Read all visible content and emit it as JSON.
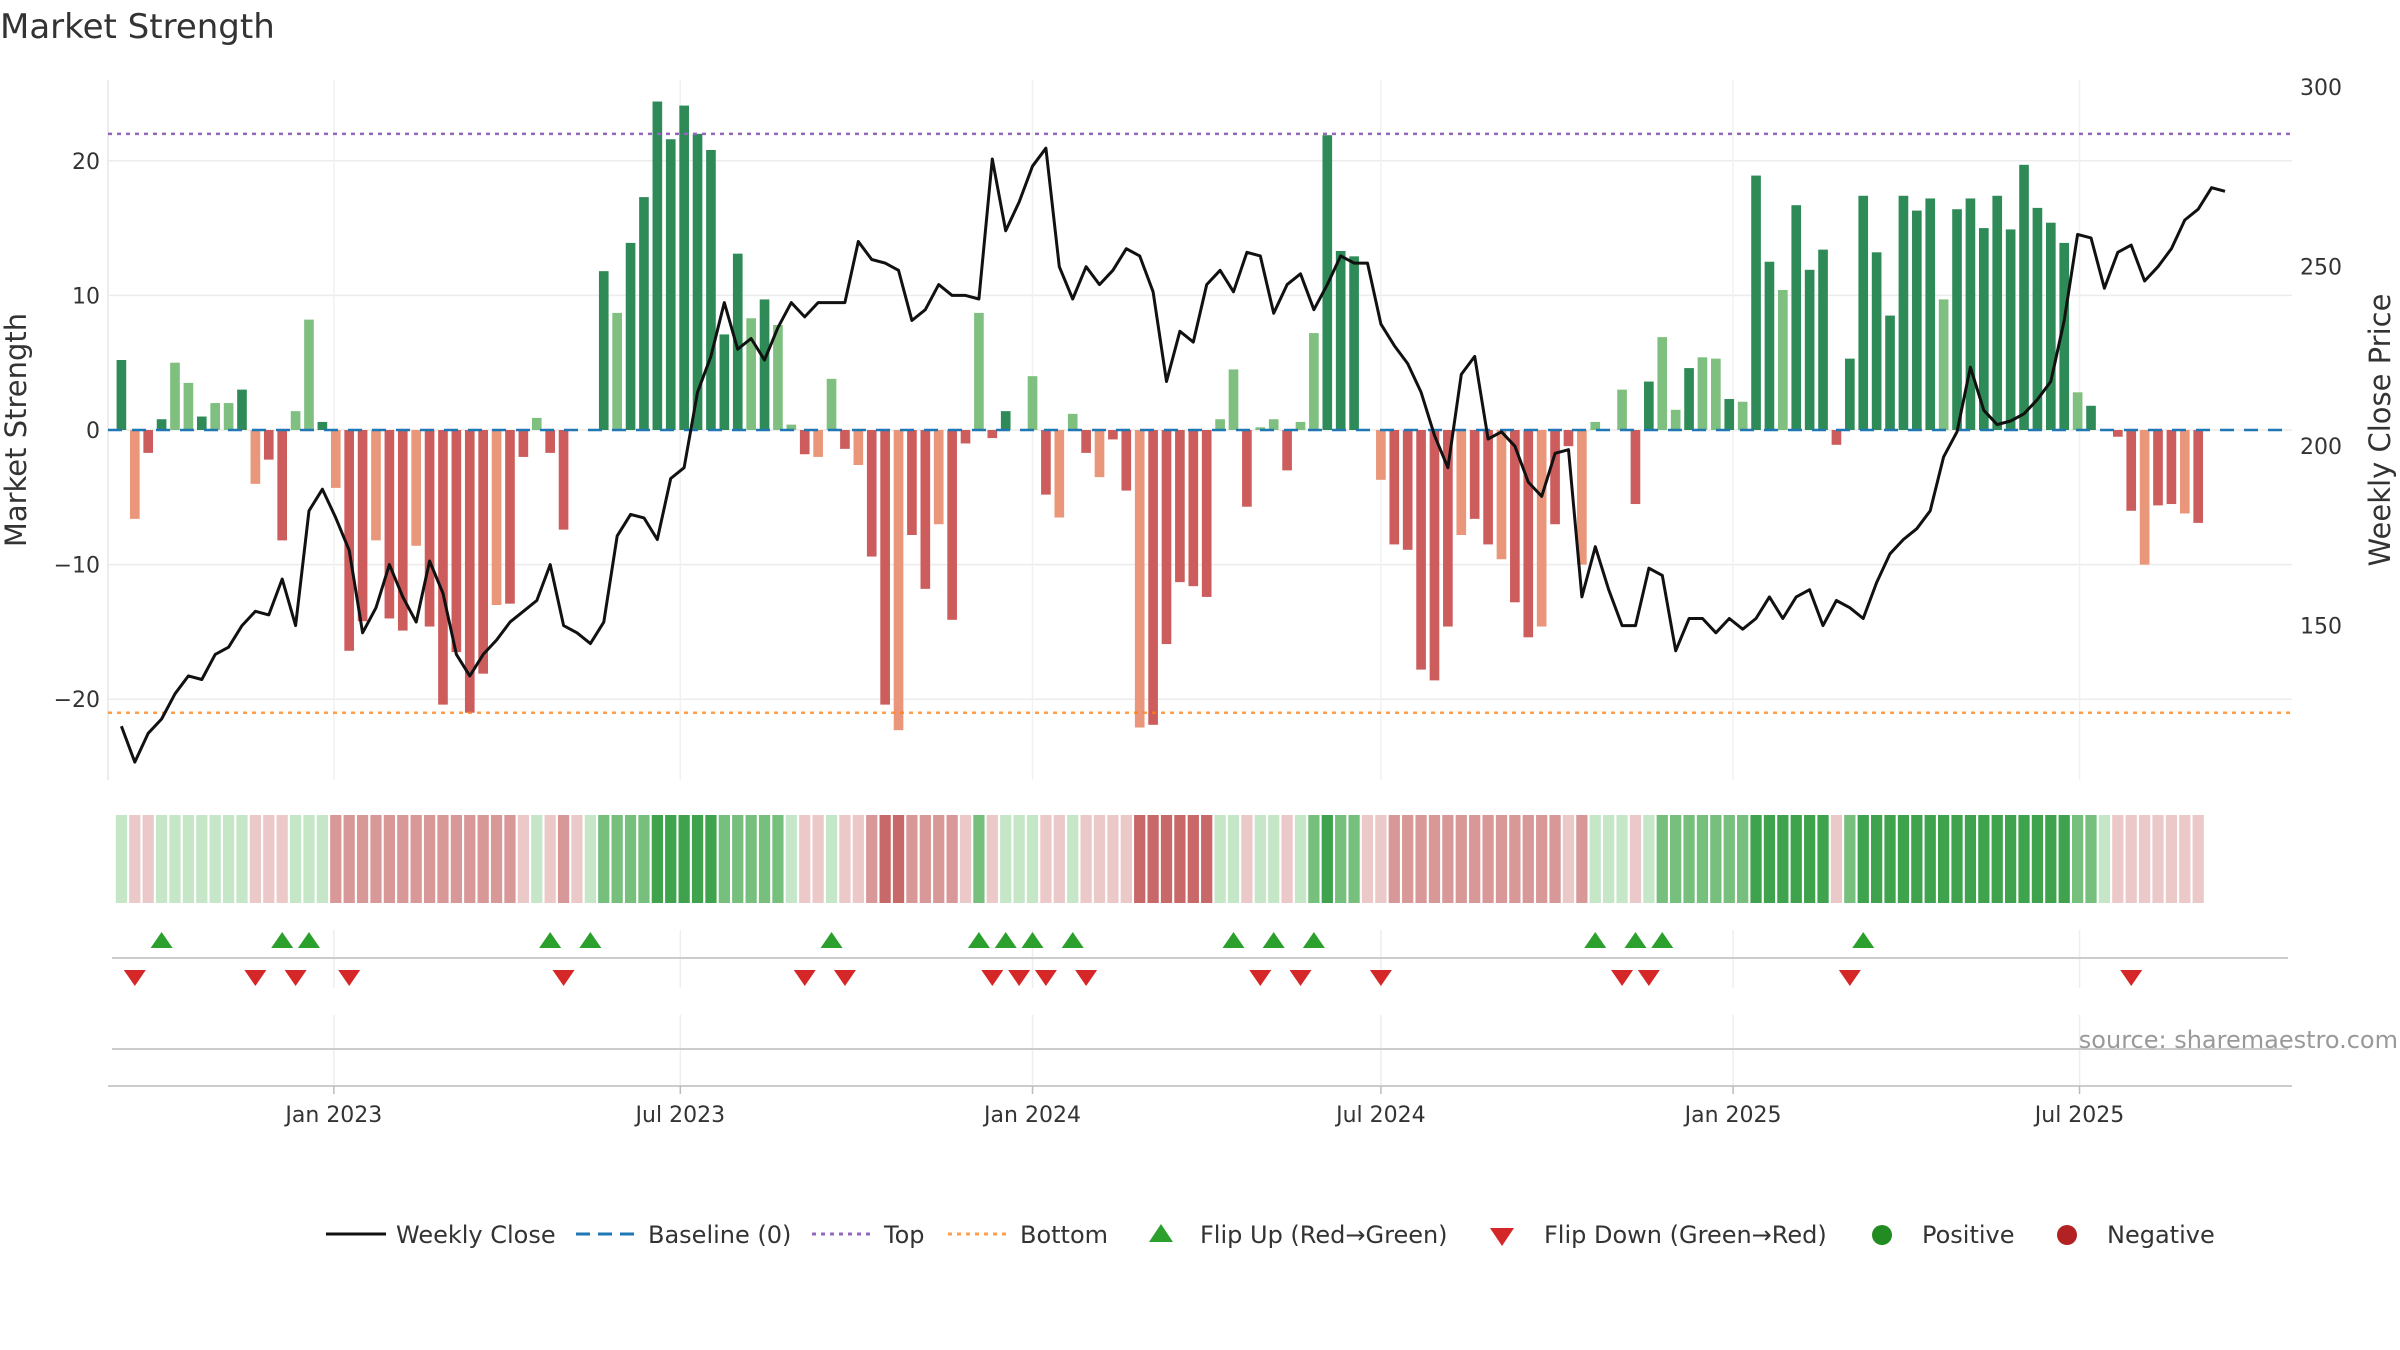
{
  "chart_data": {
    "type": "bar",
    "title": "Market Strength",
    "ylabel": "Market Strength",
    "y2label": "Weekly Close Price",
    "ylim": [
      -26,
      26
    ],
    "y_ticks": [
      -20,
      -10,
      0,
      10,
      20
    ],
    "y_tick_labels": [
      "−20",
      "−10",
      "0",
      "10",
      "20"
    ],
    "y2lim": [
      107,
      302
    ],
    "y2_ticks": [
      150,
      200,
      250,
      300
    ],
    "y2_tick_labels": [
      "150",
      "200",
      "250",
      "300"
    ],
    "top_line": 22,
    "bottom_line": -21,
    "x_start": "2022-09-05",
    "x_end": "2025-10-20",
    "x_ticks": [
      {
        "date": "2023-01-01",
        "label": "Jan 2023"
      },
      {
        "date": "2023-07-01",
        "label": "Jul 2023"
      },
      {
        "date": "2024-01-01",
        "label": "Jan 2024"
      },
      {
        "date": "2024-07-01",
        "label": "Jul 2024"
      },
      {
        "date": "2025-01-01",
        "label": "Jan 2025"
      },
      {
        "date": "2025-07-01",
        "label": "Jul 2025"
      }
    ],
    "start_date": "2022-09-12",
    "week_days": 7,
    "strength": [
      5.2,
      -6.6,
      -1.7,
      0.8,
      5.0,
      3.5,
      1.0,
      2.0,
      2.0,
      3.0,
      -4.0,
      -2.2,
      -8.2,
      1.4,
      8.2,
      0.6,
      -4.3,
      -16.4,
      -14.2,
      -8.2,
      -14.0,
      -14.9,
      -8.6,
      -14.6,
      -20.4,
      -16.5,
      -21.0,
      -18.1,
      -13.0,
      -12.9,
      -2.0,
      0.9,
      -1.7,
      -7.4,
      0,
      0,
      11.8,
      8.7,
      13.9,
      17.3,
      24.4,
      21.6,
      24.1,
      22.0,
      20.8,
      7.1,
      13.1,
      8.3,
      9.7,
      7.8,
      0.4,
      -1.8,
      -2.0,
      3.8,
      -1.4,
      -2.6,
      -9.4,
      -20.4,
      -22.3,
      -7.8,
      -11.8,
      -7.0,
      -14.1,
      -1.0,
      8.7,
      -0.6,
      1.4,
      0,
      4.0,
      -4.8,
      -6.5,
      1.2,
      -1.7,
      -3.5,
      -0.7,
      -4.5,
      -22.1,
      -21.9,
      -15.9,
      -11.3,
      -11.6,
      -12.4,
      0.8,
      4.5,
      -5.7,
      0.2,
      0.8,
      -3.0,
      0.6,
      7.2,
      21.9,
      13.3,
      12.9,
      0,
      -3.7,
      -8.5,
      -8.9,
      -17.8,
      -18.6,
      -14.6,
      -7.8,
      -6.6,
      -8.5,
      -9.6,
      -12.8,
      -15.4,
      -14.6,
      -7.0,
      -1.2,
      -10.0,
      0.6,
      0,
      3.0,
      -5.5,
      3.6,
      6.9,
      1.5,
      4.6,
      5.4,
      5.3,
      2.3,
      2.1,
      18.9,
      12.5,
      10.4,
      16.7,
      11.9,
      13.4,
      -1.1,
      5.3,
      17.4,
      13.2,
      8.5,
      17.4,
      16.3,
      17.2,
      9.7,
      16.4,
      17.2,
      15.0,
      17.4,
      14.9,
      19.7,
      16.5,
      15.4,
      13.9,
      2.8,
      1.8,
      0,
      -0.5,
      -6.0,
      -10.0,
      -5.6,
      -5.5,
      -6.2,
      -6.9
    ],
    "weekly_close": [
      122,
      112,
      120,
      124,
      131,
      136,
      135,
      142,
      144,
      150,
      154,
      153,
      163,
      150,
      182,
      188,
      180,
      171,
      148,
      155,
      167,
      158,
      151,
      168,
      159,
      142,
      136,
      142,
      146,
      151,
      154,
      157,
      167,
      150,
      148,
      145,
      151,
      175,
      181,
      180,
      174,
      191,
      194,
      215,
      225,
      240,
      227,
      230,
      224,
      233,
      240,
      236,
      240,
      240,
      240,
      257,
      252,
      251,
      249,
      235,
      238,
      245,
      242,
      242,
      241,
      280,
      260,
      268,
      278,
      283,
      250,
      241,
      250,
      245,
      249,
      255,
      253,
      243,
      218,
      232,
      229,
      245,
      249,
      243,
      254,
      253,
      237,
      245,
      248,
      238,
      245,
      253,
      251,
      251,
      234,
      228,
      223,
      215,
      203,
      194,
      220,
      225,
      202,
      204,
      200,
      190,
      186,
      198,
      199,
      158,
      172,
      160,
      150,
      150,
      166,
      164,
      143,
      152,
      152,
      148,
      152,
      149,
      152,
      158,
      152,
      158,
      160,
      150,
      157,
      155,
      152,
      162,
      170,
      174,
      177,
      182,
      197,
      204,
      222,
      210,
      206,
      207,
      209,
      213,
      218,
      235,
      259,
      258,
      244,
      254,
      256,
      246,
      250,
      255,
      263,
      266,
      272,
      271
    ],
    "colorbar": [
      "lg",
      "lr",
      "lr",
      "lg",
      "lg",
      "lg",
      "lg",
      "lg",
      "lg",
      "lg",
      "lr",
      "lr",
      "lr",
      "lg",
      "lg",
      "lg",
      "mr",
      "mr",
      "mr",
      "mr",
      "mr",
      "mr",
      "mr",
      "mr",
      "mr",
      "mr",
      "mr",
      "mr",
      "mr",
      "mr",
      "lr",
      "lg",
      "lr",
      "mr",
      "lr",
      "lg",
      "mg",
      "mg",
      "mg",
      "mg",
      "sg",
      "sg",
      "sg",
      "sg",
      "sg",
      "mg",
      "mg",
      "mg",
      "mg",
      "mg",
      "lg",
      "lr",
      "lr",
      "lg",
      "lr",
      "lr",
      "mr",
      "dr",
      "dr",
      "mr",
      "mr",
      "mr",
      "mr",
      "lr",
      "mg",
      "lr",
      "lg",
      "lg",
      "lg",
      "lr",
      "lr",
      "lg",
      "lr",
      "lr",
      "lr",
      "lr",
      "dr",
      "dr",
      "dr",
      "dr",
      "dr",
      "dr",
      "lg",
      "lg",
      "lr",
      "lg",
      "lg",
      "lr",
      "lg",
      "mg",
      "sg",
      "mg",
      "mg",
      "lr",
      "lr",
      "mr",
      "mr",
      "mr",
      "mr",
      "mr",
      "mr",
      "mr",
      "mr",
      "mr",
      "mr",
      "mr",
      "mr",
      "mr",
      "lr",
      "mr",
      "lg",
      "lg",
      "lg",
      "lr",
      "lg",
      "mg",
      "mg",
      "mg",
      "mg",
      "mg",
      "mg",
      "mg",
      "sg",
      "sg",
      "sg",
      "sg",
      "sg",
      "sg",
      "lr",
      "mg",
      "sg",
      "sg",
      "sg",
      "sg",
      "sg",
      "sg",
      "sg",
      "sg",
      "sg",
      "sg",
      "sg",
      "sg",
      "sg",
      "sg",
      "sg",
      "sg",
      "mg",
      "mg",
      "lg",
      "lr",
      "lr",
      "lr",
      "lr",
      "lr",
      "lr",
      "lr"
    ],
    "flip_up_weeks": [
      3,
      12,
      14,
      32,
      35,
      53,
      64,
      66,
      68,
      71,
      83,
      86,
      89,
      110,
      113,
      115,
      130
    ],
    "flip_down_weeks": [
      1,
      10,
      13,
      17,
      33,
      51,
      54,
      65,
      67,
      69,
      72,
      85,
      88,
      94,
      112,
      114,
      129,
      150
    ],
    "legend": [
      "Weekly Close",
      "Baseline (0)",
      "Top",
      "Bottom",
      "Flip Up (Red→Green)",
      "Flip Down (Green→Red)",
      "Positive",
      "Negative"
    ],
    "legend_position": "bottom-center"
  },
  "colors": {
    "strong_green": "#2e8b57",
    "light_green": "#7fbf7f",
    "strong_red": "#cd5c5c",
    "light_red": "#e9967a",
    "close_line": "#111111",
    "baseline": "#1f77b4",
    "top": "#9467bd",
    "bottom": "#ff7f0e",
    "flip_up": "#2ca02c",
    "flip_down": "#d62728",
    "positive": "#228b22",
    "negative": "#b22222",
    "band": {
      "sg": "#3fa34d",
      "mg": "#76bf7d",
      "lg": "#c6e6c8",
      "lr": "#ecc9c9",
      "mr": "#d99898",
      "dr": "#c86868"
    }
  },
  "source": "source: sharemaestro.com"
}
